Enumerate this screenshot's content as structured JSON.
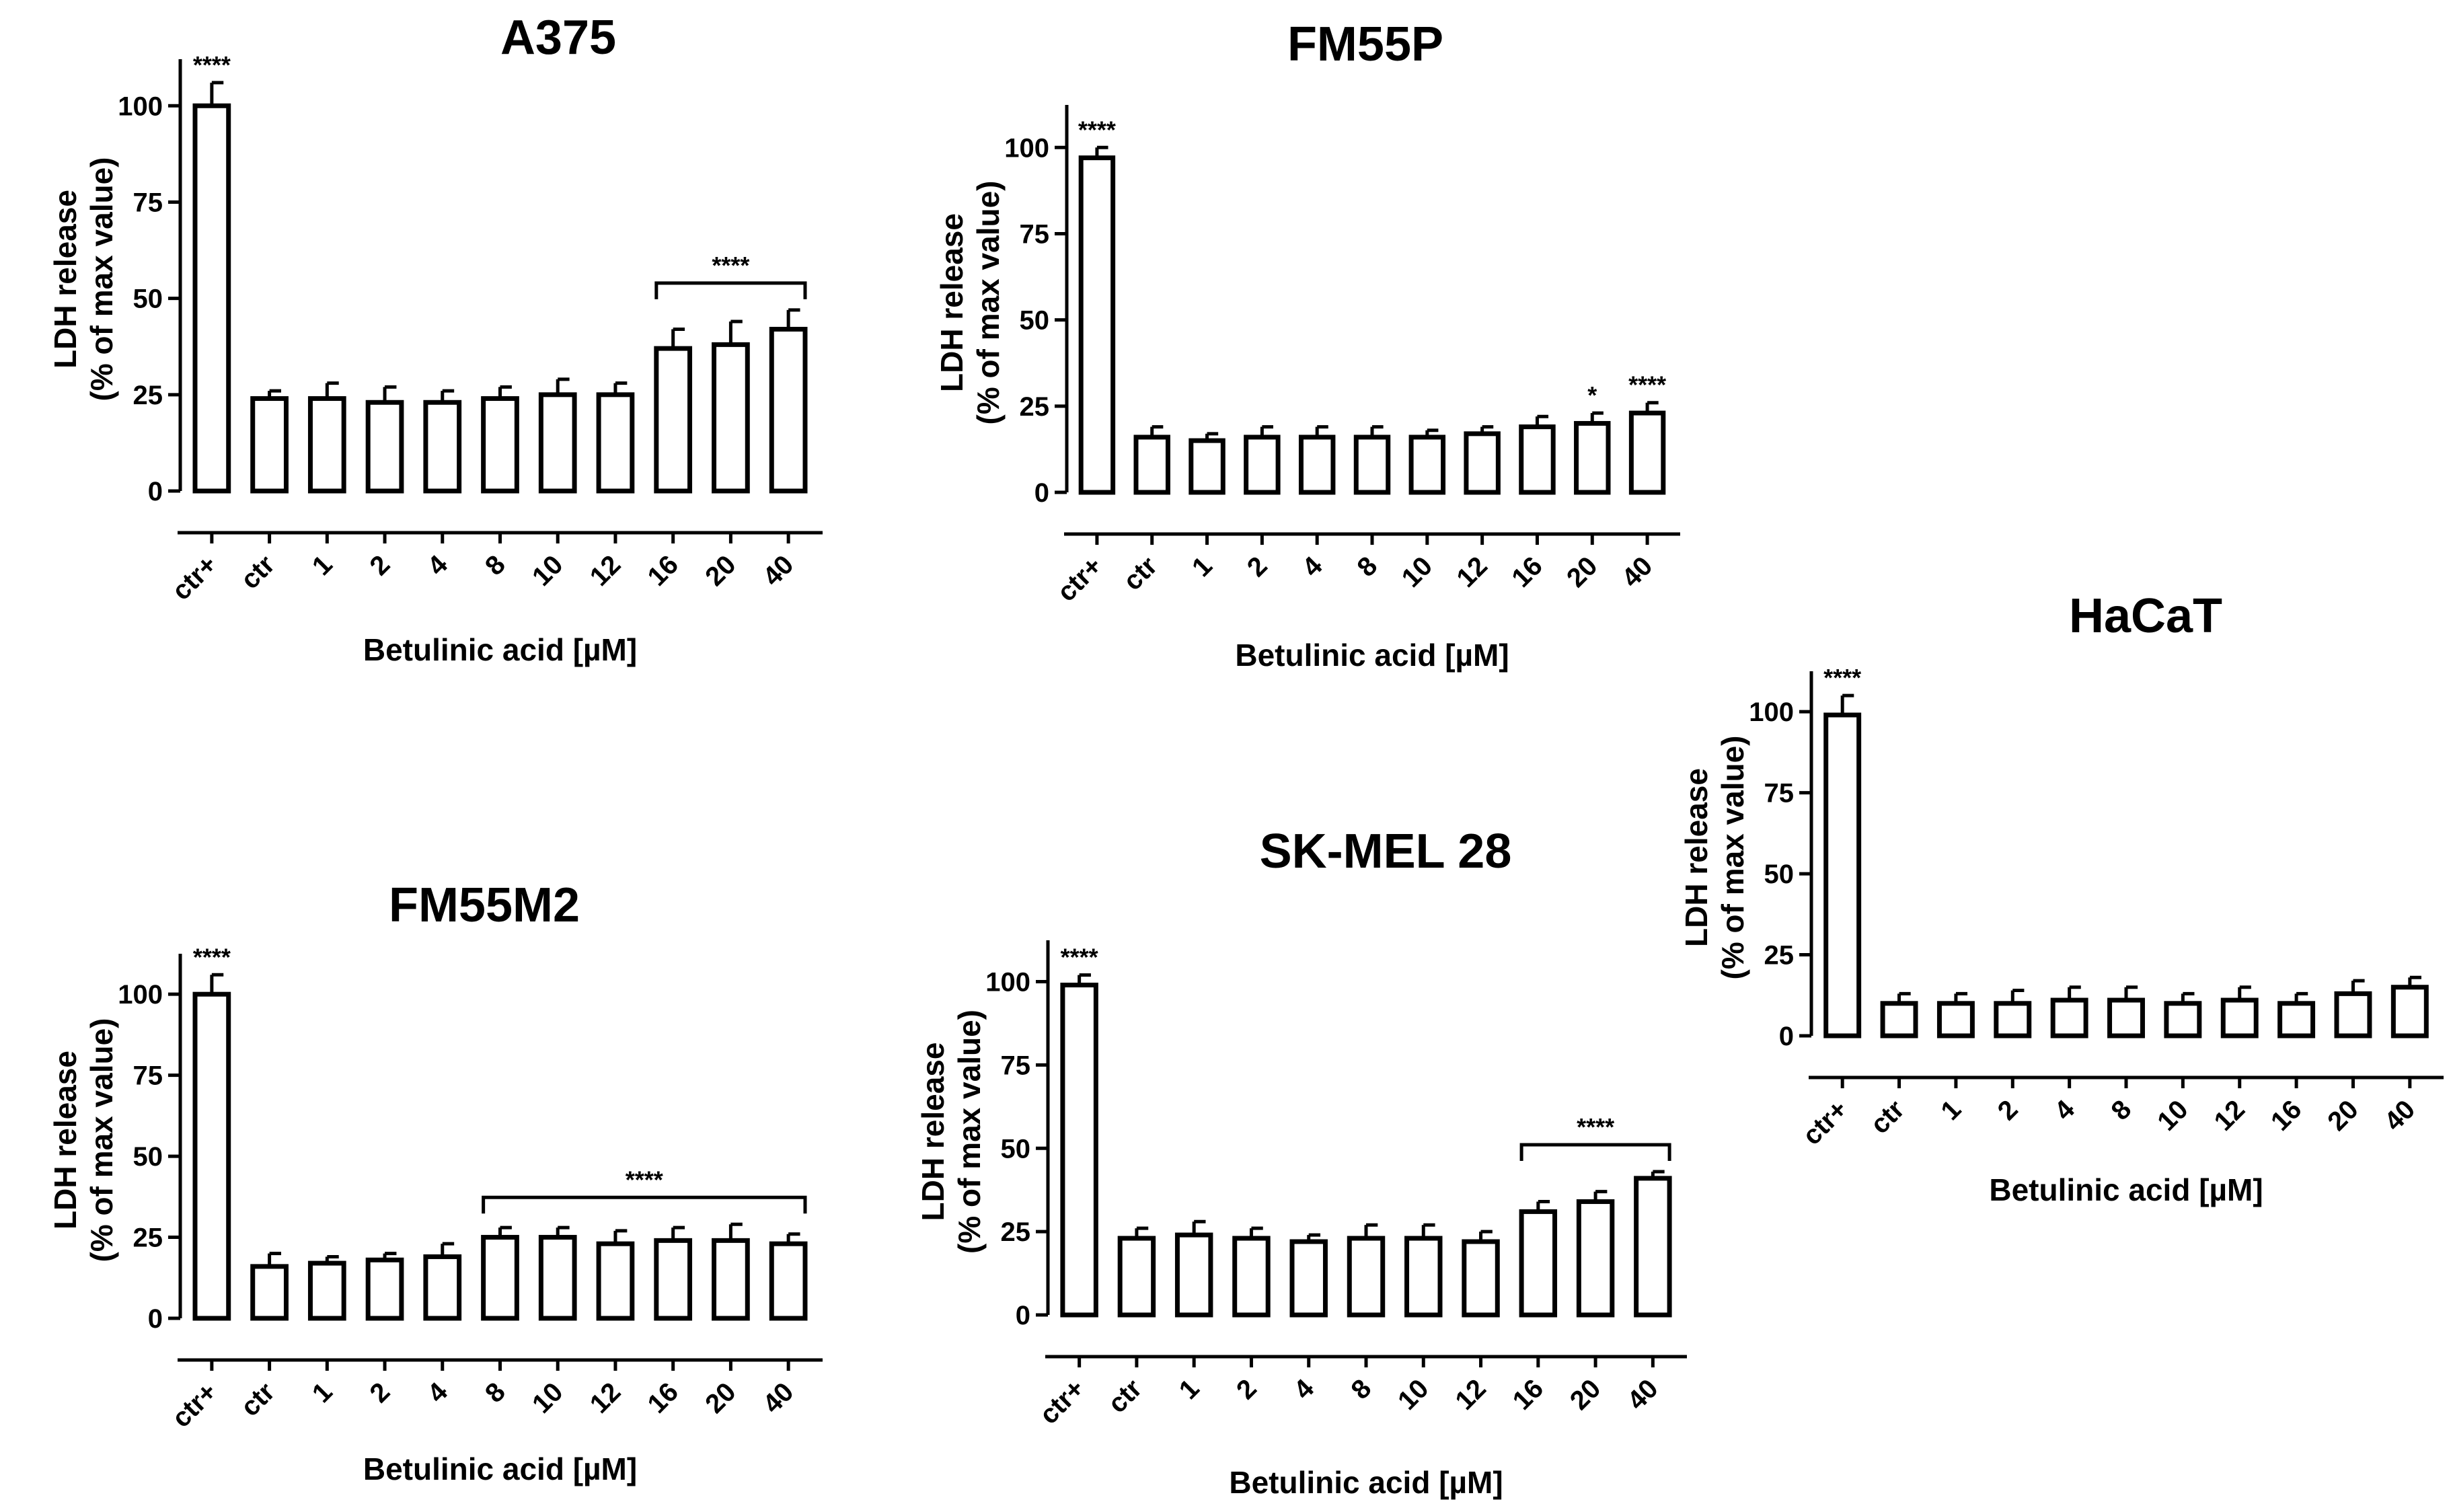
{
  "chart_data": [
    {
      "type": "bar",
      "title": "A375",
      "categories": [
        "ctr+",
        "ctr",
        "1",
        "2",
        "4",
        "8",
        "10",
        "12",
        "16",
        "20",
        "40"
      ],
      "values": [
        100,
        24,
        24,
        23,
        23,
        24,
        25,
        25,
        37,
        38,
        42
      ],
      "errors": [
        6,
        2,
        4,
        4,
        3,
        3,
        4,
        3,
        5,
        6,
        5
      ],
      "xlabel": "Betulinic acid [µM]",
      "ylabel": [
        "LDH release",
        "(% of max value)"
      ],
      "yticks": [
        0,
        25,
        50,
        75,
        100
      ],
      "ylim": [
        0,
        110
      ],
      "significance": [
        {
          "label": "****",
          "from": 0,
          "to": 0
        },
        {
          "label": "****",
          "from": 8,
          "to": 10
        }
      ]
    },
    {
      "type": "bar",
      "title": "FM55P",
      "categories": [
        "ctr+",
        "ctr",
        "1",
        "2",
        "4",
        "8",
        "10",
        "12",
        "16",
        "20",
        "40"
      ],
      "values": [
        97,
        16,
        15,
        16,
        16,
        16,
        16,
        17,
        19,
        20,
        23
      ],
      "errors": [
        3,
        3,
        2,
        3,
        3,
        3,
        2,
        2,
        3,
        3,
        3
      ],
      "xlabel": "Betulinic acid [µM]",
      "ylabel": [
        "LDH release",
        "(% of max value)"
      ],
      "yticks": [
        0,
        25,
        50,
        75,
        100
      ],
      "ylim": [
        0,
        110
      ],
      "significance": [
        {
          "label": "****",
          "from": 0,
          "to": 0
        },
        {
          "label": "*",
          "from": 9,
          "to": 9
        },
        {
          "label": "****",
          "from": 10,
          "to": 10
        }
      ]
    },
    {
      "type": "bar",
      "title": "FM55M2",
      "categories": [
        "ctr+",
        "ctr",
        "1",
        "2",
        "4",
        "8",
        "10",
        "12",
        "16",
        "20",
        "40"
      ],
      "values": [
        100,
        16,
        17,
        18,
        19,
        25,
        25,
        23,
        24,
        24,
        23
      ],
      "errors": [
        6,
        4,
        2,
        2,
        4,
        3,
        3,
        4,
        4,
        5,
        3
      ],
      "xlabel": "Betulinic acid [µM]",
      "ylabel": [
        "LDH release",
        "(% of max value)"
      ],
      "yticks": [
        0,
        25,
        50,
        75,
        100
      ],
      "ylim": [
        0,
        110
      ],
      "significance": [
        {
          "label": "****",
          "from": 0,
          "to": 0
        },
        {
          "label": "****",
          "from": 5,
          "to": 10
        }
      ]
    },
    {
      "type": "bar",
      "title": "SK-MEL 28",
      "categories": [
        "ctr+",
        "ctr",
        "1",
        "2",
        "4",
        "8",
        "10",
        "12",
        "16",
        "20",
        "40"
      ],
      "values": [
        99,
        23,
        24,
        23,
        22,
        23,
        23,
        22,
        31,
        34,
        41
      ],
      "errors": [
        3,
        3,
        4,
        3,
        2,
        4,
        4,
        3,
        3,
        3,
        2
      ],
      "xlabel": "Betulinic acid [µM]",
      "ylabel": [
        "LDH release",
        "(% of max value)"
      ],
      "yticks": [
        0,
        25,
        50,
        75,
        100
      ],
      "ylim": [
        0,
        110
      ],
      "significance": [
        {
          "label": "****",
          "from": 0,
          "to": 0
        },
        {
          "label": "****",
          "from": 8,
          "to": 10
        }
      ]
    },
    {
      "type": "bar",
      "title": "HaCaT",
      "categories": [
        "ctr+",
        "ctr",
        "1",
        "2",
        "4",
        "8",
        "10",
        "12",
        "16",
        "20",
        "40"
      ],
      "values": [
        99,
        10,
        10,
        10,
        11,
        11,
        10,
        11,
        10,
        13,
        15
      ],
      "errors": [
        6,
        3,
        3,
        4,
        4,
        4,
        3,
        4,
        3,
        4,
        3
      ],
      "xlabel": "Betulinic acid [µM]",
      "ylabel": [
        "LDH release",
        "(% of max value)"
      ],
      "yticks": [
        0,
        25,
        50,
        75,
        100
      ],
      "ylim": [
        0,
        110
      ],
      "significance": [
        {
          "label": "****",
          "from": 0,
          "to": 0
        }
      ]
    }
  ]
}
